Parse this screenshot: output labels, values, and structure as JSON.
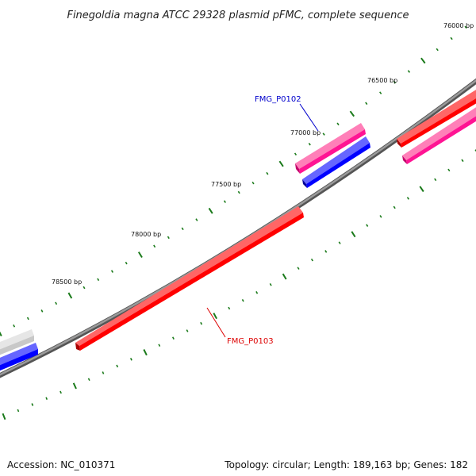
{
  "title": "Finegoldia magna ATCC 29328 plasmid pFMC, complete sequence",
  "accession_text": "Accession: NC_010371",
  "summary_text": "Topology: circular; Length: 189,163 bp; Genes: 182",
  "colors": {
    "backbone": "#808080",
    "tick": "#1a7a1a",
    "gene_red": "#ff0000",
    "gene_magenta": "#ff1493",
    "gene_blue": "#0000ff",
    "gene_gray": "#c8c8c8",
    "label_blue": "#0000cc",
    "label_red": "#dd0000"
  },
  "tick_labels": [
    "76000 bp",
    "76500 bp",
    "77000 bp",
    "77500 bp",
    "78000 bp",
    "78500 bp"
  ],
  "gene_labels": [
    {
      "name": "FMG_P0102",
      "color": "label_blue"
    },
    {
      "name": "FMG_P0103",
      "color": "label_red"
    }
  ]
}
